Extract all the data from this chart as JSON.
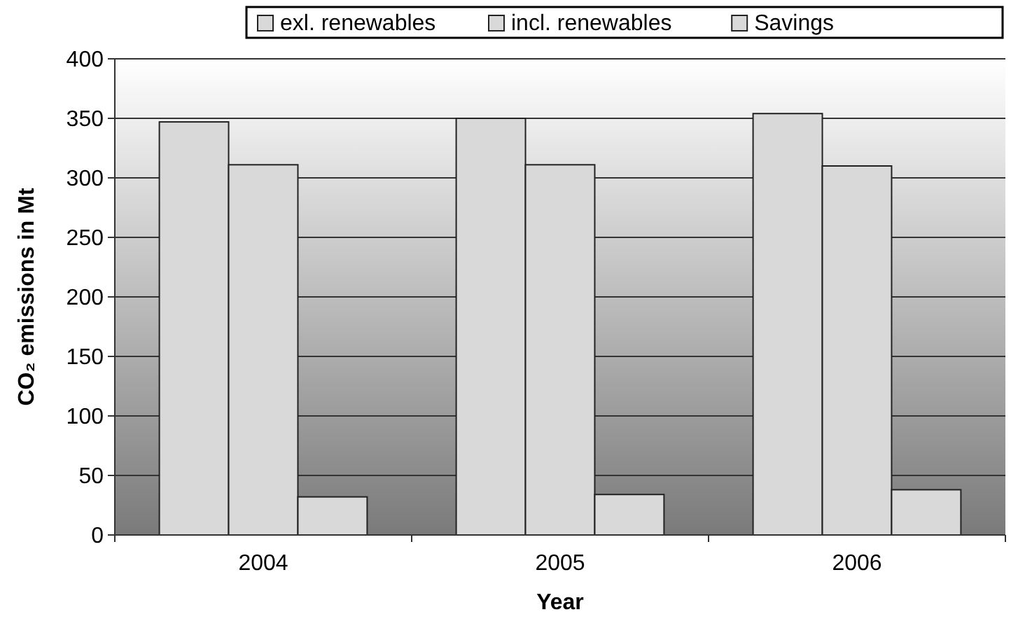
{
  "chart_data": {
    "type": "bar",
    "xlabel": "Year",
    "ylabel": "CO₂ emissions in Mt",
    "categories": [
      "2004",
      "2005",
      "2006"
    ],
    "series": [
      {
        "name": "exl. renewables",
        "color": "#d9d9d9",
        "values": [
          347,
          350,
          354
        ]
      },
      {
        "name": "incl. renewables",
        "color": "#d9d9d9",
        "values": [
          311,
          311,
          310
        ]
      },
      {
        "name": "Savings",
        "color": "#d9d9d9",
        "values": [
          32,
          34,
          38
        ]
      }
    ],
    "ylim": [
      0,
      400
    ],
    "yticks": [
      0,
      50,
      100,
      150,
      200,
      250,
      300,
      350,
      400
    ],
    "grid": "y",
    "legend": "top right"
  }
}
